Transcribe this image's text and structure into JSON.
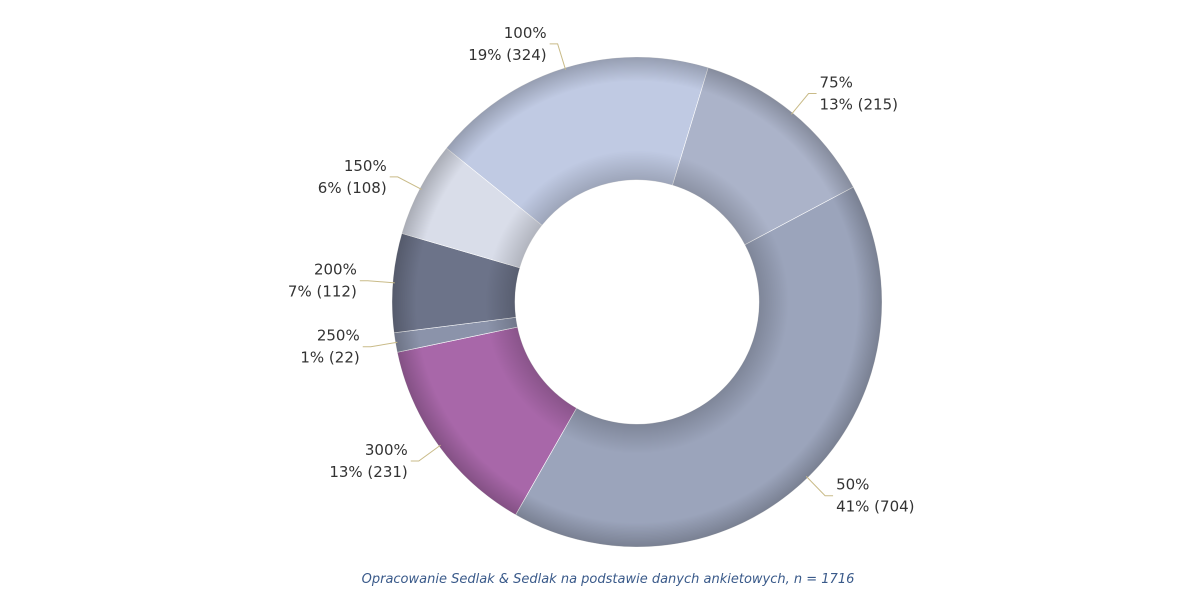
{
  "chart_data": {
    "type": "donut",
    "categories": [
      "50%",
      "300%",
      "250%",
      "200%",
      "150%",
      "100%",
      "75%"
    ],
    "values": [
      704,
      231,
      22,
      112,
      108,
      324,
      215
    ],
    "value_labels": [
      "41% (704)",
      "13% (231)",
      "1% (22)",
      "7% (112)",
      "6% (108)",
      "19% (324)",
      "13% (215)"
    ],
    "colors": [
      "#9ba4bb",
      "#a867a9",
      "#8b93aa",
      "#6c7389",
      "#d9dde9",
      "#c0cae3",
      "#abb3c9"
    ],
    "source": "Opracowanie Sedlak & Sedlak na podstawie danych ankietowych, n = 1716"
  }
}
